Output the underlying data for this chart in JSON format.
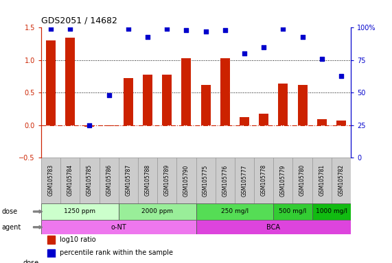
{
  "title": "GDS2051 / 14682",
  "samples": [
    "GSM105783",
    "GSM105784",
    "GSM105785",
    "GSM105786",
    "GSM105787",
    "GSM105788",
    "GSM105789",
    "GSM105790",
    "GSM105775",
    "GSM105776",
    "GSM105777",
    "GSM105778",
    "GSM105779",
    "GSM105780",
    "GSM105781",
    "GSM105782"
  ],
  "log10_ratio": [
    1.3,
    1.35,
    -0.02,
    -0.01,
    0.72,
    0.78,
    0.78,
    1.03,
    0.62,
    1.03,
    0.12,
    0.18,
    0.64,
    0.62,
    0.09,
    0.07
  ],
  "percentile_rank": [
    99,
    99,
    25,
    48,
    99,
    93,
    99,
    98,
    97,
    98,
    80,
    85,
    99,
    93,
    76,
    63
  ],
  "bar_color": "#cc2200",
  "dot_color": "#0000cc",
  "dose_groups": [
    {
      "label": "1250 ppm",
      "start": 0,
      "end": 4,
      "color": "#ccffcc"
    },
    {
      "label": "2000 ppm",
      "start": 4,
      "end": 8,
      "color": "#99ee99"
    },
    {
      "label": "250 mg/l",
      "start": 8,
      "end": 12,
      "color": "#55dd55"
    },
    {
      "label": "500 mg/l",
      "start": 12,
      "end": 14,
      "color": "#33cc33"
    },
    {
      "label": "1000 mg/l",
      "start": 14,
      "end": 16,
      "color": "#11bb11"
    }
  ],
  "agent_groups": [
    {
      "label": "o-NT",
      "start": 0,
      "end": 8,
      "color": "#ee77ee"
    },
    {
      "label": "BCA",
      "start": 8,
      "end": 16,
      "color": "#dd44dd"
    }
  ],
  "ylim_left": [
    -0.5,
    1.5
  ],
  "ylim_right": [
    0,
    100
  ],
  "yticks_left": [
    -0.5,
    0.0,
    0.5,
    1.0,
    1.5
  ],
  "yticks_right": [
    0,
    25,
    50,
    75,
    100
  ],
  "hlines": [
    0.5,
    1.0
  ],
  "legend_items": [
    {
      "label": "log10 ratio",
      "color": "#cc2200"
    },
    {
      "label": "percentile rank within the sample",
      "color": "#0000cc"
    }
  ],
  "background_color": "#ffffff",
  "label_bg_color": "#cccccc",
  "dashed_zero_color": "#cc2200"
}
